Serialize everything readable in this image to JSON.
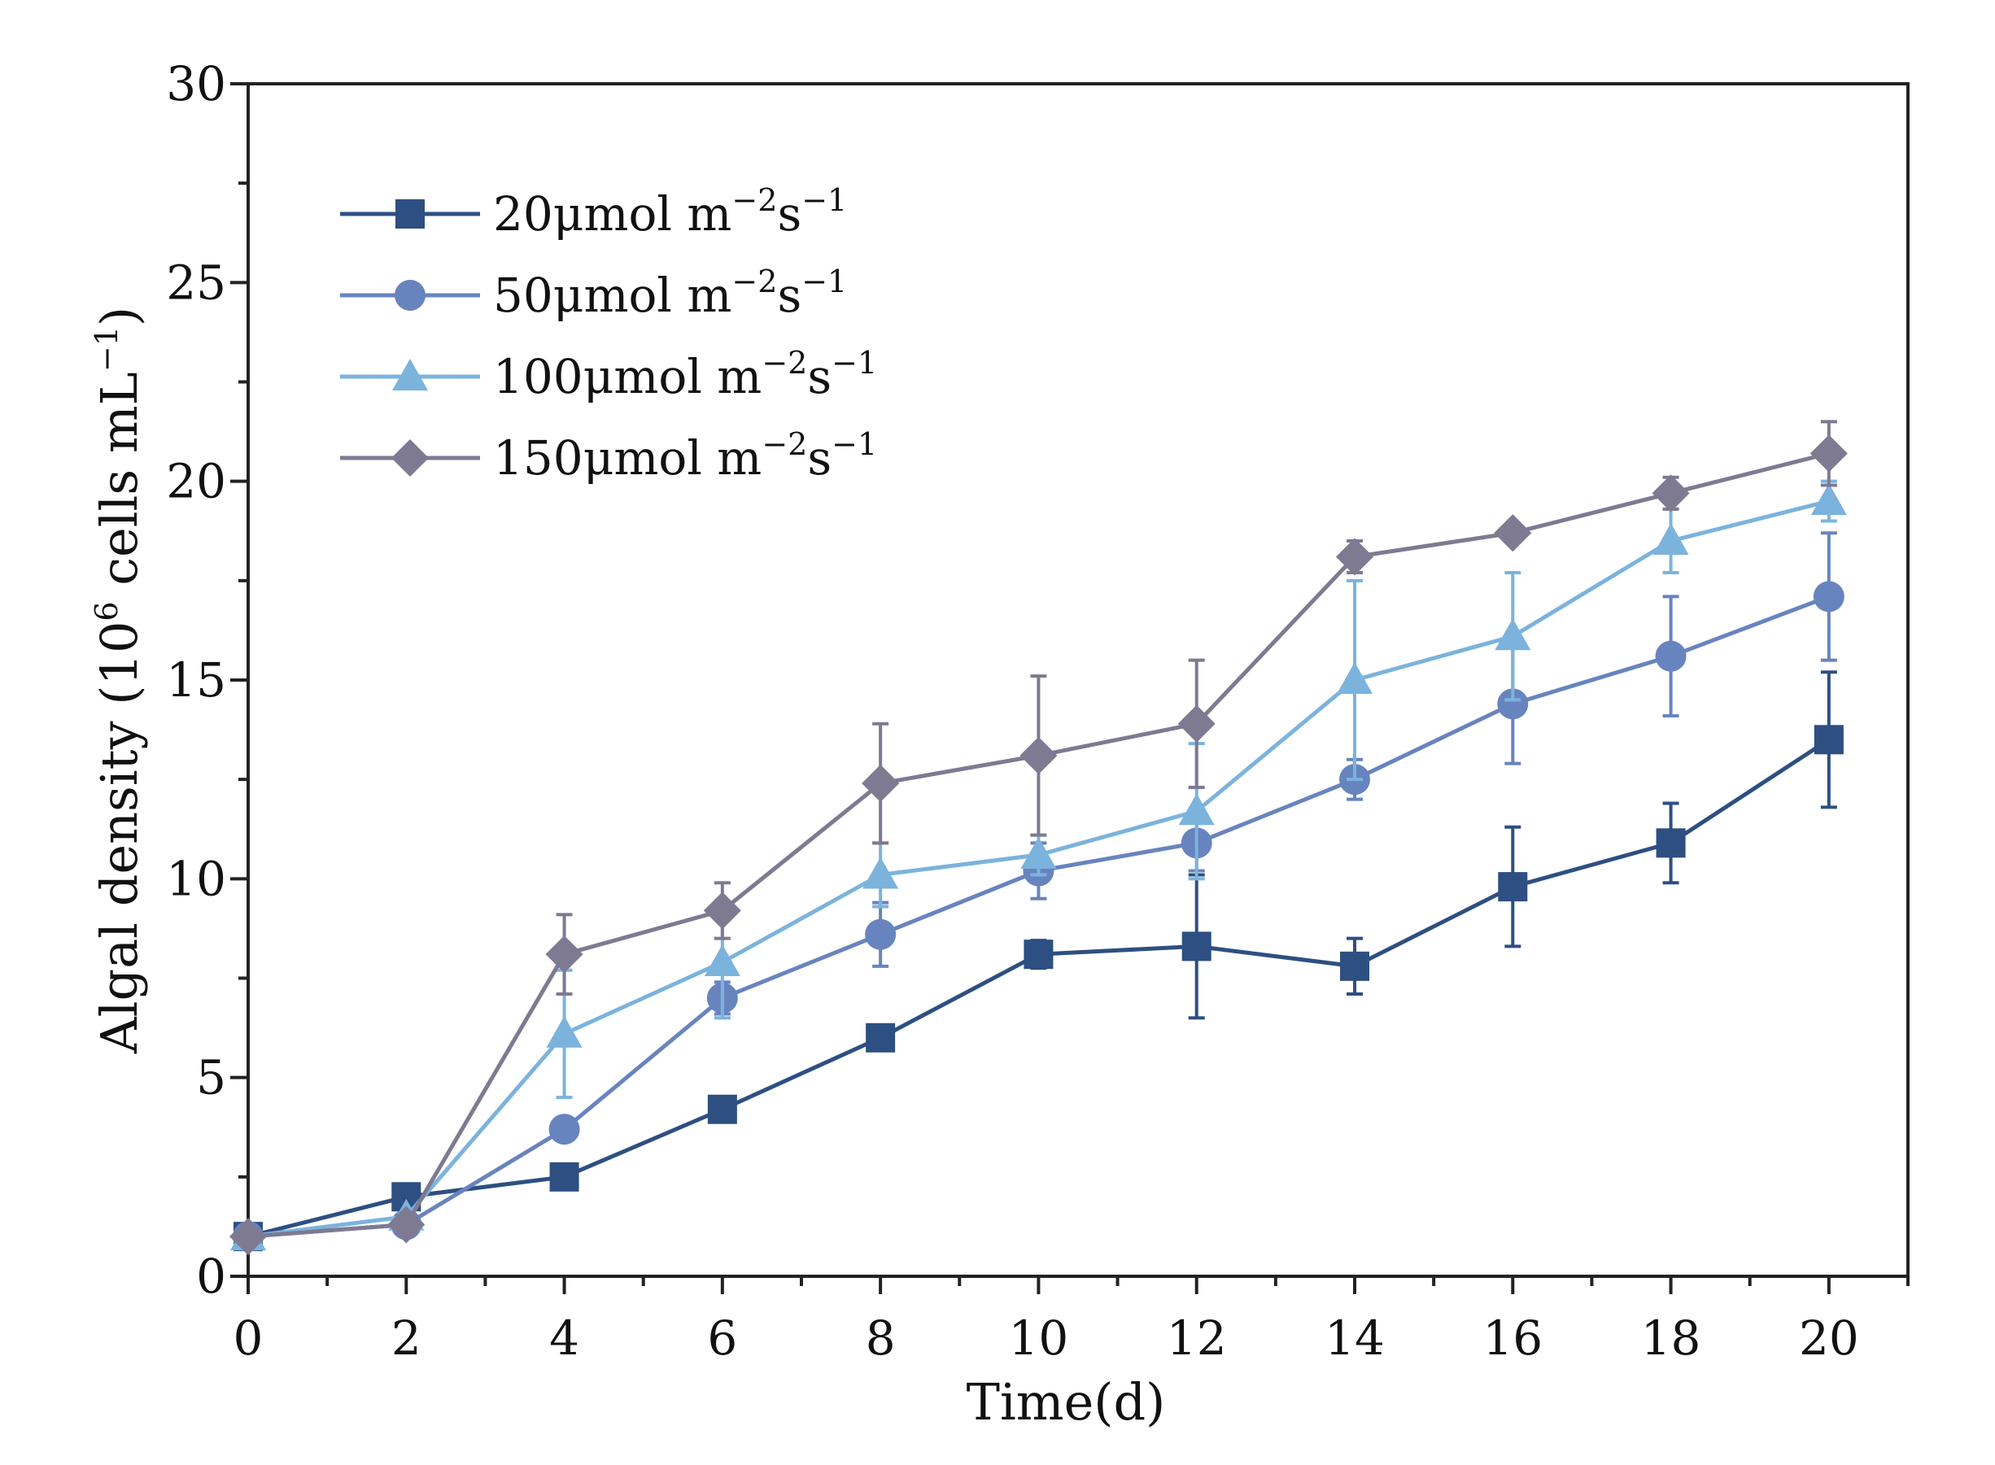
{
  "chart_data": {
    "type": "line",
    "title": "",
    "xlabel": "Time(d)",
    "ylabel": {
      "prefix": "Algal density (10",
      "exp": "6",
      "middle": " cells mL",
      "exp2": "−1",
      "suffix": ")"
    },
    "xlim": [
      0,
      21
    ],
    "ylim": [
      0,
      30
    ],
    "x": [
      0,
      2,
      4,
      6,
      8,
      10,
      12,
      14,
      16,
      18,
      20
    ],
    "xticks": [
      "0",
      "2",
      "4",
      "6",
      "8",
      "10",
      "12",
      "14",
      "16",
      "18",
      "20"
    ],
    "yticks": [
      "0",
      "5",
      "10",
      "15",
      "20",
      "25",
      "30"
    ],
    "grid": false,
    "legend_position": "top-left",
    "series": [
      {
        "name": "20μmol m−2s−1",
        "label_main": "20μmol m",
        "label_exp1": "−2",
        "label_s": "s",
        "label_exp2": "−1",
        "marker": "square",
        "color": "#2d4f82",
        "values": [
          1.0,
          2.0,
          2.5,
          4.2,
          6.0,
          8.1,
          8.3,
          7.8,
          9.8,
          10.9,
          13.5
        ],
        "errors": [
          0.1,
          0.2,
          0.2,
          0.2,
          0.2,
          0.35,
          1.8,
          0.7,
          1.5,
          1.0,
          1.7
        ]
      },
      {
        "name": "50μmol m−2s−1",
        "label_main": "50μmol m",
        "label_exp1": "−2",
        "label_s": "s",
        "label_exp2": "−1",
        "marker": "circle",
        "color": "#6884bf",
        "values": [
          1.0,
          1.3,
          3.7,
          7.0,
          8.6,
          10.2,
          10.9,
          12.5,
          14.4,
          15.6,
          17.1
        ],
        "errors": [
          0.1,
          0.1,
          0.2,
          0.4,
          0.8,
          0.7,
          0.7,
          0.5,
          1.5,
          1.5,
          1.6
        ]
      },
      {
        "name": "100μmol m−2s−1",
        "label_main": "100μmol m",
        "label_exp1": "−2",
        "label_s": "s",
        "label_exp2": "−1",
        "marker": "triangle",
        "color": "#7bb3dd",
        "values": [
          1.0,
          1.5,
          6.1,
          7.9,
          10.1,
          10.6,
          11.7,
          15.0,
          16.1,
          18.5,
          19.5
        ],
        "errors": [
          0.1,
          0.1,
          1.6,
          1.4,
          0.8,
          0.5,
          1.7,
          2.5,
          1.6,
          0.8,
          0.5
        ]
      },
      {
        "name": "150μmol m−2s−1",
        "label_main": "150μmol m",
        "label_exp1": "−2",
        "label_s": "s",
        "label_exp2": "−1",
        "marker": "diamond",
        "color": "#7e7a92",
        "values": [
          1.0,
          1.3,
          8.1,
          9.2,
          12.4,
          13.1,
          13.9,
          18.1,
          18.7,
          19.7,
          20.7
        ],
        "errors": [
          0.1,
          0.1,
          1.0,
          0.7,
          1.5,
          2.0,
          1.6,
          0.4,
          0.15,
          0.4,
          0.8
        ]
      }
    ]
  }
}
